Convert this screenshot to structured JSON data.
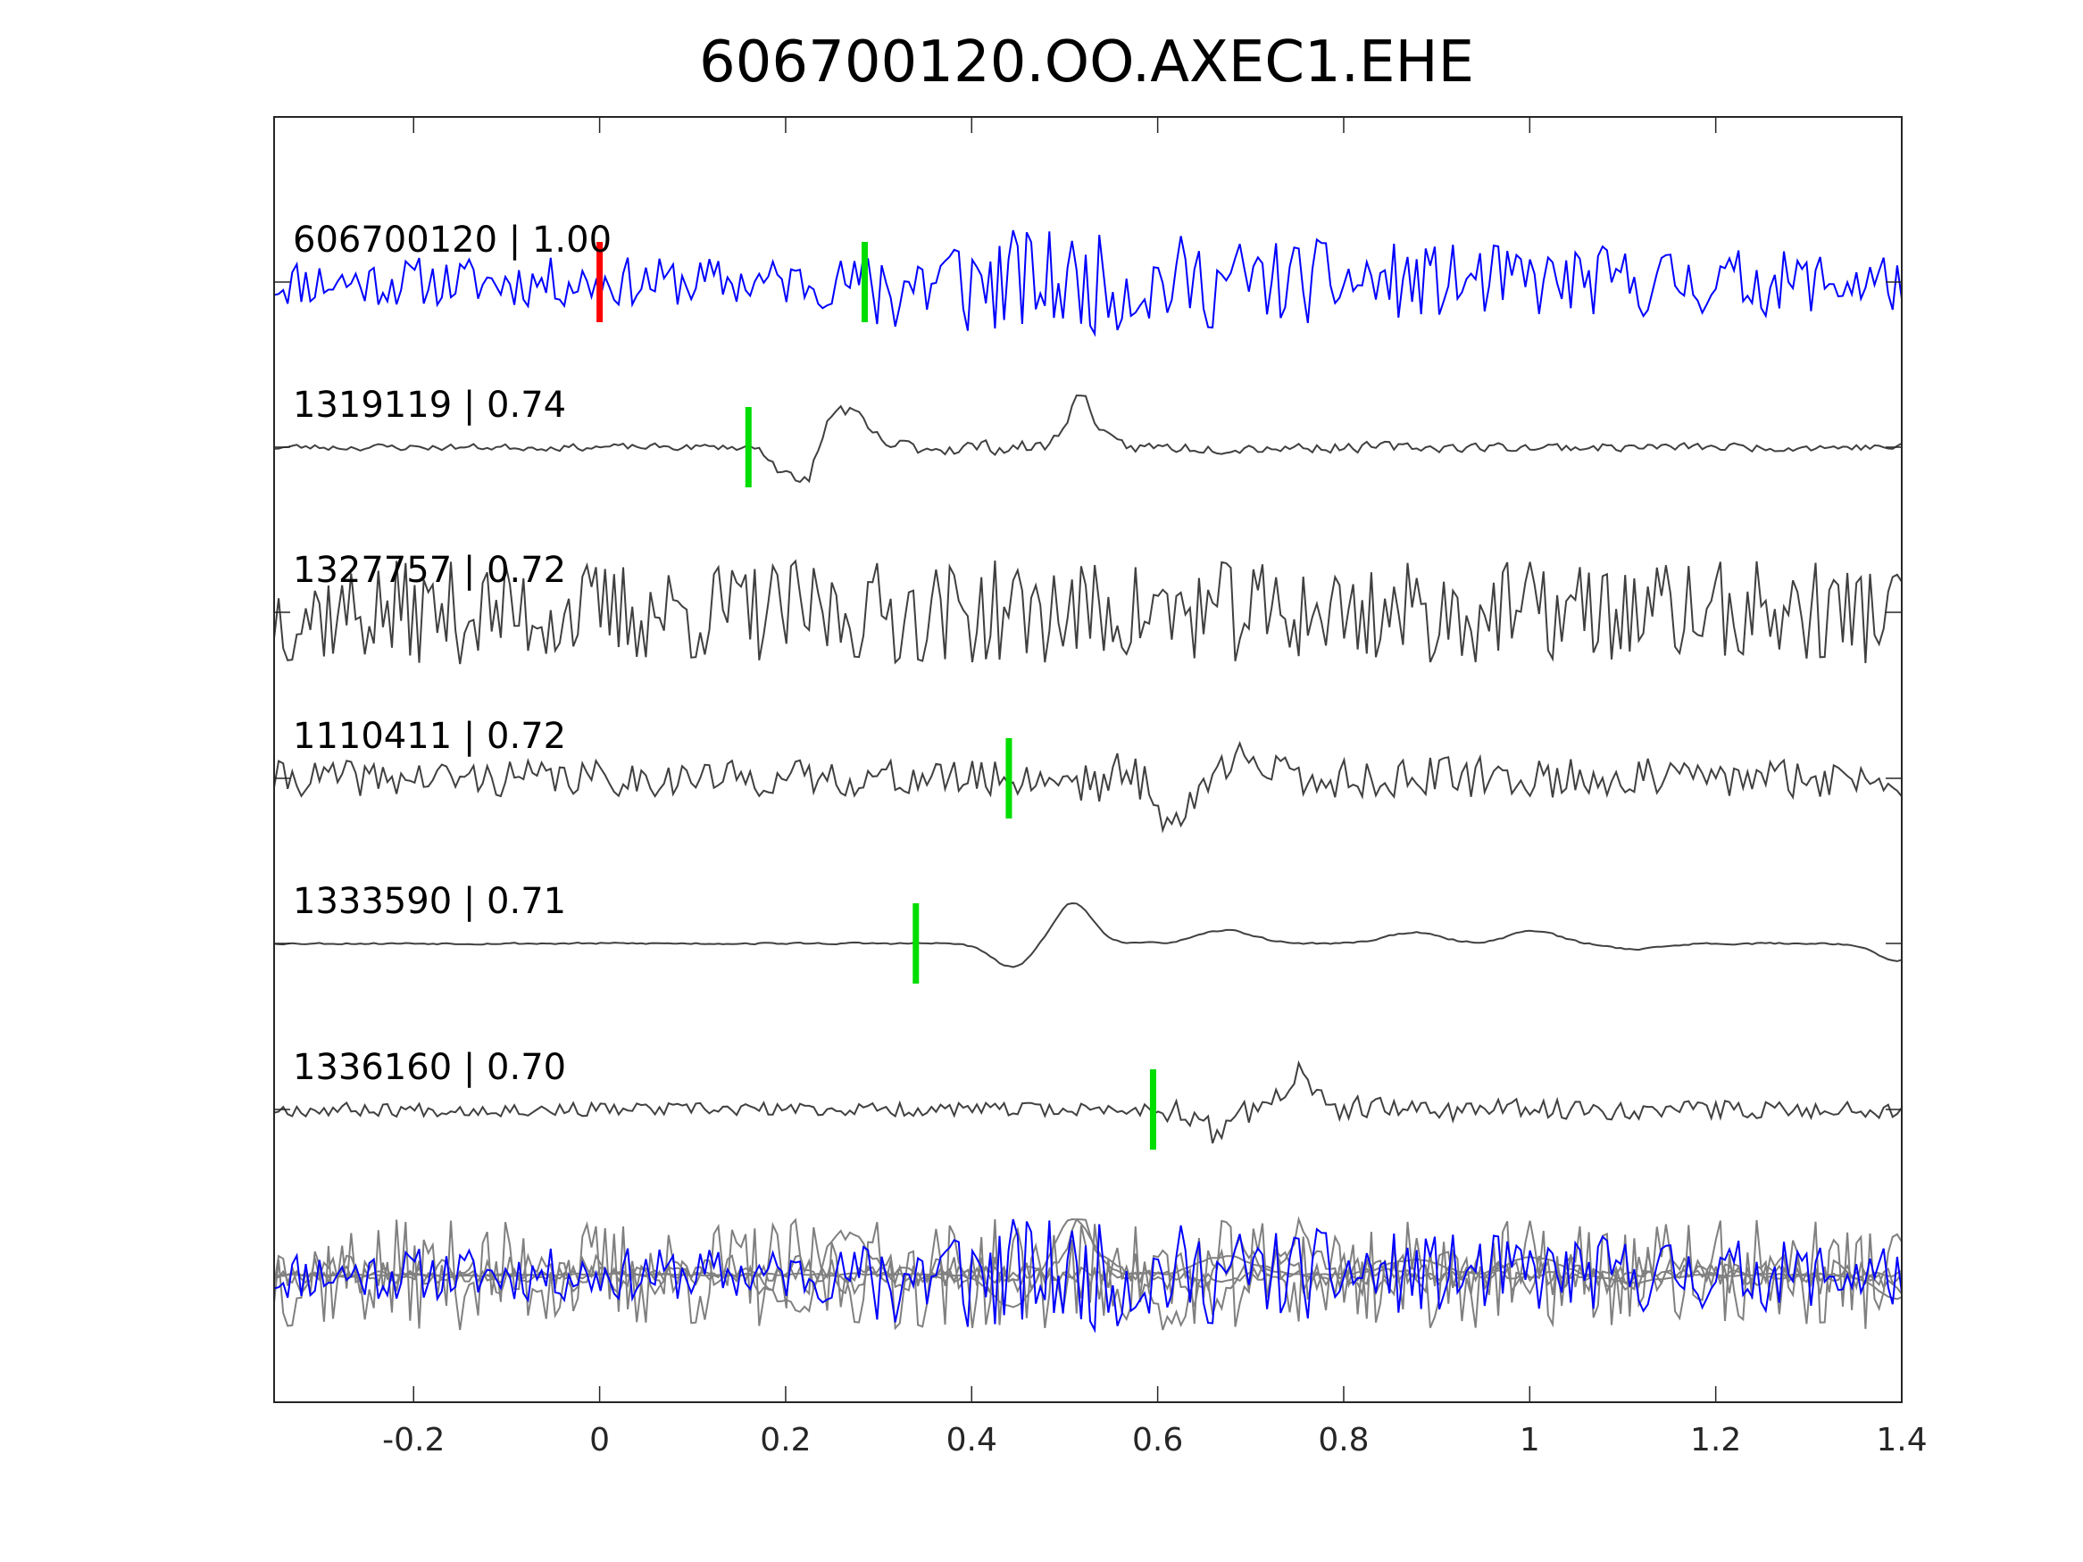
{
  "chart_data": {
    "type": "line",
    "title": "606700120.OO.AXEC1.EHE",
    "xlabel": "",
    "ylabel": "",
    "xlim": [
      -0.35,
      1.4
    ],
    "xticks": [
      -0.2,
      0,
      0.2,
      0.4,
      0.6,
      0.8,
      1,
      1.2,
      1.4
    ],
    "xtick_labels": [
      "-0.2",
      "0",
      "0.2",
      "0.4",
      "0.6",
      "0.8",
      "1",
      "1.2",
      "1.4"
    ],
    "grid": false,
    "colors": {
      "template_trace": "#0000ff",
      "match_trace": "#404040",
      "overlay_trace": "#808080",
      "reference_pick": "#ff0000",
      "match_pick": "#00dd00",
      "axes": "#262626"
    },
    "traces": [
      {
        "label": "606700120 | 1.00",
        "event_id": "606700120",
        "correlation": 1.0,
        "role": "template",
        "picks": [
          {
            "time": 0.0,
            "color": "red"
          },
          {
            "time": 0.285,
            "color": "green"
          }
        ]
      },
      {
        "label": "1319119 | 0.74",
        "event_id": "1319119",
        "correlation": 0.74,
        "role": "match",
        "picks": [
          {
            "time": 0.16,
            "color": "green"
          }
        ]
      },
      {
        "label": "1327757 | 0.72",
        "event_id": "1327757",
        "correlation": 0.72,
        "role": "match",
        "picks": []
      },
      {
        "label": "1110411 | 0.72",
        "event_id": "1110411",
        "correlation": 0.72,
        "role": "match",
        "picks": [
          {
            "time": 0.44,
            "color": "green"
          }
        ]
      },
      {
        "label": "1333590 | 0.71",
        "event_id": "1333590",
        "correlation": 0.71,
        "role": "match",
        "picks": [
          {
            "time": 0.34,
            "color": "green"
          }
        ]
      },
      {
        "label": "1336160 | 0.70",
        "event_id": "1336160",
        "correlation": 0.7,
        "role": "match",
        "picks": [
          {
            "time": 0.595,
            "color": "green"
          }
        ]
      }
    ],
    "overlay": {
      "description_visible": false,
      "includes_template": true
    }
  }
}
